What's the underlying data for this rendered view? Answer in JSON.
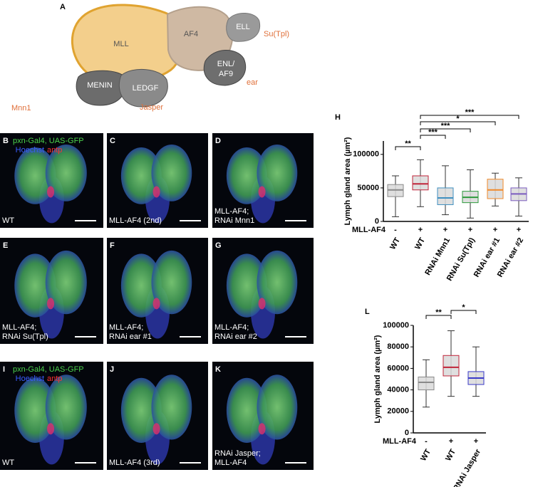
{
  "diagram": {
    "letter": "A",
    "nodes": [
      "MLL",
      "AF4",
      "ELL",
      "ENL/",
      "AF9",
      "MENIN",
      "LEDGF"
    ],
    "partners": [
      "Su(Tpl)",
      "ear",
      "Mnn1",
      "Jasper"
    ]
  },
  "panels": [
    {
      "letter": "B",
      "caption": [
        "WT"
      ],
      "legend": [
        "pxn-Gal4, UAS-GFP",
        "Hoechst",
        "antp"
      ]
    },
    {
      "letter": "C",
      "caption": [
        "MLL-AF4 (2nd)"
      ]
    },
    {
      "letter": "D",
      "caption": [
        "MLL-AF4;",
        "RNAi Mnn1"
      ]
    },
    {
      "letter": "E",
      "caption": [
        "MLL-AF4;",
        "RNAi Su(Tpl)"
      ]
    },
    {
      "letter": "F",
      "caption": [
        "MLL-AF4;",
        "RNAi ear #1"
      ]
    },
    {
      "letter": "G",
      "caption": [
        "MLL-AF4;",
        "RNAi ear #2"
      ]
    },
    {
      "letter": "I",
      "caption": [
        "WT"
      ],
      "legend": [
        "pxn-Gal4, UAS-GFP",
        "Hoechst",
        "antp"
      ]
    },
    {
      "letter": "J",
      "caption": [
        "MLL-AF4 (3rd)"
      ]
    },
    {
      "letter": "K",
      "caption": [
        "RNAi Jasper;",
        "MLL-AF4"
      ]
    }
  ],
  "chart_data": [
    {
      "type": "box",
      "label": "H",
      "y_label": "Lymph gland area (µm²)",
      "ylim": [
        0,
        120000
      ],
      "yticks": [
        0,
        50000,
        100000
      ],
      "genotype_label": "MLL-AF4",
      "genotype": [
        "-",
        "+",
        "+",
        "+",
        "+",
        "+"
      ],
      "categories": [
        "WT",
        "WT",
        "RNAi Mnn1",
        "RNAi Su(Tpl)",
        "RNAi ear #1",
        "RNAi ear #2"
      ],
      "colors": [
        "#8a8a8a",
        "#c0253a",
        "#3f8fc0",
        "#2e9a3c",
        "#f08a2a",
        "#7a5bbf"
      ],
      "boxes": [
        {
          "min": 7000,
          "q1": 37000,
          "median": 47000,
          "q3": 55000,
          "max": 68000
        },
        {
          "min": 22000,
          "q1": 47000,
          "median": 56000,
          "q3": 68000,
          "max": 92000
        },
        {
          "min": 10000,
          "q1": 25000,
          "median": 35000,
          "q3": 50000,
          "max": 83000
        },
        {
          "min": 5000,
          "q1": 28000,
          "median": 36000,
          "q3": 45000,
          "max": 77000
        },
        {
          "min": 23000,
          "q1": 34000,
          "median": 47000,
          "q3": 63000,
          "max": 72000
        },
        {
          "min": 8000,
          "q1": 31000,
          "median": 41000,
          "q3": 50000,
          "max": 65000
        }
      ],
      "significance": [
        {
          "text": "***",
          "from": 1,
          "to": 5
        },
        {
          "text": "*",
          "from": 1,
          "to": 4
        },
        {
          "text": "***",
          "from": 1,
          "to": 3
        },
        {
          "text": "***",
          "from": 1,
          "to": 2
        },
        {
          "text": "**",
          "from": 0,
          "to": 1
        }
      ]
    },
    {
      "type": "box",
      "label": "L",
      "y_label": "Lymph gland area (µm²)",
      "ylim": [
        0,
        100000
      ],
      "yticks": [
        0,
        20000,
        40000,
        60000,
        80000,
        100000
      ],
      "genotype_label": "MLL-AF4",
      "genotype": [
        "-",
        "+",
        "+"
      ],
      "categories": [
        "WT",
        "WT",
        "RNAi Jasper"
      ],
      "colors": [
        "#8a8a8a",
        "#c0253a",
        "#3a3ac8"
      ],
      "boxes": [
        {
          "min": 24000,
          "q1": 40000,
          "median": 47000,
          "q3": 52000,
          "max": 68000
        },
        {
          "min": 34000,
          "q1": 53000,
          "median": 61000,
          "q3": 72000,
          "max": 95000
        },
        {
          "min": 34000,
          "q1": 45000,
          "median": 51000,
          "q3": 57000,
          "max": 80000
        }
      ],
      "significance": [
        {
          "text": "**",
          "from": 0,
          "to": 1
        },
        {
          "text": "*",
          "from": 1,
          "to": 2
        }
      ]
    }
  ]
}
